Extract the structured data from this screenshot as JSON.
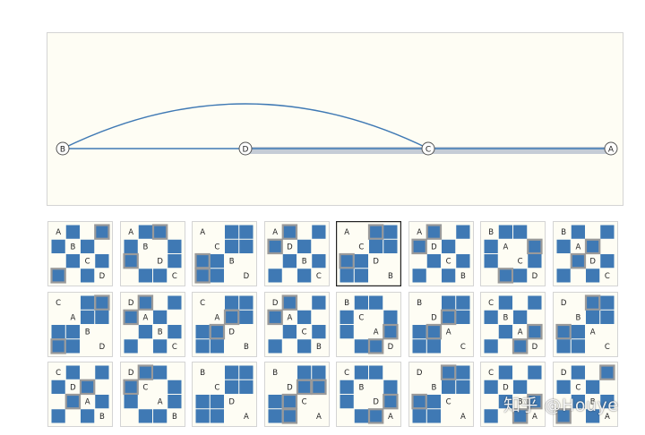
{
  "graph": {
    "nodes": [
      "B",
      "D",
      "C",
      "A"
    ],
    "straight_edges": [
      [
        "B",
        "D"
      ],
      [
        "D",
        "C"
      ],
      [
        "C",
        "A"
      ]
    ],
    "arc_edges": [
      [
        "B",
        "C"
      ]
    ],
    "highlighted_path": [
      "D",
      "C",
      "A"
    ],
    "colors": {
      "edge": "#3f79b4",
      "highlight": "#c5ccd6",
      "node_fill": "#ffffff",
      "node_stroke": "#555555"
    }
  },
  "matrix_grid": {
    "colors": {
      "cell_bg": "#fefdf4",
      "filled": "#3f79b4",
      "outline": "#9a9a9a",
      "border": "#d4d4d4",
      "selected_border": "#222222"
    },
    "selected_index": 4,
    "matrices": [
      {
        "labels": [
          "A",
          "B",
          "C",
          "D"
        ],
        "filled": [
          [
            0,
            1
          ],
          [
            0,
            3
          ],
          [
            1,
            0
          ],
          [
            1,
            2
          ],
          [
            2,
            1
          ],
          [
            2,
            3
          ],
          [
            3,
            0
          ],
          [
            3,
            2
          ]
        ],
        "outlined": [
          [
            0,
            3
          ],
          [
            3,
            0
          ]
        ]
      },
      {
        "labels": [
          "A",
          "B",
          "D",
          "C"
        ],
        "filled": [
          [
            0,
            1
          ],
          [
            0,
            2
          ],
          [
            1,
            0
          ],
          [
            1,
            3
          ],
          [
            2,
            0
          ],
          [
            2,
            3
          ],
          [
            3,
            1
          ],
          [
            3,
            2
          ]
        ],
        "outlined": [
          [
            0,
            2
          ],
          [
            2,
            0
          ]
        ]
      },
      {
        "labels": [
          "A",
          "C",
          "B",
          "D"
        ],
        "filled": [
          [
            0,
            2
          ],
          [
            0,
            3
          ],
          [
            1,
            2
          ],
          [
            1,
            3
          ],
          [
            2,
            0
          ],
          [
            2,
            1
          ],
          [
            3,
            0
          ],
          [
            3,
            1
          ]
        ],
        "outlined": [
          [
            2,
            0
          ],
          [
            3,
            0
          ]
        ]
      },
      {
        "labels": [
          "A",
          "D",
          "B",
          "C"
        ],
        "filled": [
          [
            0,
            1
          ],
          [
            0,
            3
          ],
          [
            1,
            0
          ],
          [
            1,
            2
          ],
          [
            2,
            1
          ],
          [
            2,
            3
          ],
          [
            3,
            0
          ],
          [
            3,
            2
          ]
        ],
        "outlined": [
          [
            0,
            1
          ],
          [
            1,
            0
          ]
        ]
      },
      {
        "labels": [
          "A",
          "C",
          "D",
          "B"
        ],
        "filled": [
          [
            0,
            2
          ],
          [
            0,
            3
          ],
          [
            1,
            2
          ],
          [
            1,
            3
          ],
          [
            2,
            0
          ],
          [
            2,
            1
          ],
          [
            3,
            0
          ],
          [
            3,
            1
          ]
        ],
        "outlined": [
          [
            0,
            2
          ],
          [
            2,
            0
          ]
        ]
      },
      {
        "labels": [
          "A",
          "D",
          "C",
          "B"
        ],
        "filled": [
          [
            0,
            1
          ],
          [
            0,
            3
          ],
          [
            1,
            0
          ],
          [
            1,
            2
          ],
          [
            2,
            1
          ],
          [
            2,
            3
          ],
          [
            3,
            0
          ],
          [
            3,
            2
          ]
        ],
        "outlined": [
          [
            0,
            1
          ],
          [
            1,
            0
          ]
        ]
      },
      {
        "labels": [
          "B",
          "A",
          "C",
          "D"
        ],
        "filled": [
          [
            0,
            1
          ],
          [
            0,
            2
          ],
          [
            1,
            0
          ],
          [
            1,
            3
          ],
          [
            2,
            0
          ],
          [
            2,
            3
          ],
          [
            3,
            1
          ],
          [
            3,
            2
          ]
        ],
        "outlined": [
          [
            1,
            3
          ],
          [
            3,
            1
          ]
        ]
      },
      {
        "labels": [
          "B",
          "A",
          "D",
          "C"
        ],
        "filled": [
          [
            0,
            1
          ],
          [
            0,
            3
          ],
          [
            1,
            0
          ],
          [
            1,
            2
          ],
          [
            2,
            1
          ],
          [
            2,
            3
          ],
          [
            3,
            0
          ],
          [
            3,
            2
          ]
        ],
        "outlined": [
          [
            1,
            2
          ],
          [
            2,
            1
          ]
        ]
      },
      {
        "labels": [
          "C",
          "A",
          "B",
          "D"
        ],
        "filled": [
          [
            0,
            2
          ],
          [
            0,
            3
          ],
          [
            1,
            2
          ],
          [
            1,
            3
          ],
          [
            2,
            0
          ],
          [
            2,
            1
          ],
          [
            3,
            0
          ],
          [
            3,
            1
          ]
        ],
        "outlined": [
          [
            0,
            3
          ],
          [
            3,
            0
          ]
        ]
      },
      {
        "labels": [
          "D",
          "A",
          "B",
          "C"
        ],
        "filled": [
          [
            0,
            1
          ],
          [
            0,
            3
          ],
          [
            1,
            0
          ],
          [
            1,
            2
          ],
          [
            2,
            1
          ],
          [
            2,
            3
          ],
          [
            3,
            0
          ],
          [
            3,
            2
          ]
        ],
        "outlined": [
          [
            0,
            1
          ],
          [
            1,
            0
          ]
        ]
      },
      {
        "labels": [
          "C",
          "A",
          "D",
          "B"
        ],
        "filled": [
          [
            0,
            2
          ],
          [
            0,
            3
          ],
          [
            1,
            2
          ],
          [
            1,
            3
          ],
          [
            2,
            0
          ],
          [
            2,
            1
          ],
          [
            3,
            0
          ],
          [
            3,
            1
          ]
        ],
        "outlined": [
          [
            2,
            1
          ],
          [
            1,
            2
          ]
        ]
      },
      {
        "labels": [
          "D",
          "A",
          "C",
          "B"
        ],
        "filled": [
          [
            0,
            1
          ],
          [
            0,
            3
          ],
          [
            1,
            0
          ],
          [
            1,
            2
          ],
          [
            2,
            1
          ],
          [
            2,
            3
          ],
          [
            3,
            0
          ],
          [
            3,
            2
          ]
        ],
        "outlined": [
          [
            0,
            1
          ],
          [
            1,
            0
          ]
        ]
      },
      {
        "labels": [
          "B",
          "C",
          "A",
          "D"
        ],
        "filled": [
          [
            0,
            1
          ],
          [
            0,
            2
          ],
          [
            1,
            0
          ],
          [
            1,
            3
          ],
          [
            2,
            0
          ],
          [
            2,
            3
          ],
          [
            3,
            1
          ],
          [
            3,
            2
          ]
        ],
        "outlined": [
          [
            2,
            3
          ],
          [
            3,
            2
          ]
        ]
      },
      {
        "labels": [
          "B",
          "D",
          "A",
          "C"
        ],
        "filled": [
          [
            0,
            2
          ],
          [
            0,
            3
          ],
          [
            1,
            2
          ],
          [
            1,
            3
          ],
          [
            2,
            0
          ],
          [
            2,
            1
          ],
          [
            3,
            0
          ],
          [
            3,
            1
          ]
        ],
        "outlined": [
          [
            1,
            2
          ],
          [
            2,
            1
          ]
        ]
      },
      {
        "labels": [
          "C",
          "B",
          "A",
          "D"
        ],
        "filled": [
          [
            0,
            1
          ],
          [
            0,
            3
          ],
          [
            1,
            0
          ],
          [
            1,
            2
          ],
          [
            2,
            1
          ],
          [
            2,
            3
          ],
          [
            3,
            0
          ],
          [
            3,
            2
          ]
        ],
        "outlined": [
          [
            2,
            3
          ],
          [
            3,
            2
          ]
        ]
      },
      {
        "labels": [
          "D",
          "B",
          "A",
          "C"
        ],
        "filled": [
          [
            0,
            2
          ],
          [
            0,
            3
          ],
          [
            1,
            2
          ],
          [
            1,
            3
          ],
          [
            2,
            0
          ],
          [
            2,
            1
          ],
          [
            3,
            0
          ],
          [
            3,
            1
          ]
        ],
        "outlined": [
          [
            0,
            2
          ],
          [
            2,
            0
          ]
        ]
      },
      {
        "labels": [
          "C",
          "D",
          "A",
          "B"
        ],
        "filled": [
          [
            0,
            1
          ],
          [
            0,
            3
          ],
          [
            1,
            0
          ],
          [
            1,
            2
          ],
          [
            2,
            1
          ],
          [
            2,
            3
          ],
          [
            3,
            0
          ],
          [
            3,
            2
          ]
        ],
        "outlined": [
          [
            1,
            2
          ],
          [
            2,
            1
          ]
        ]
      },
      {
        "labels": [
          "D",
          "C",
          "A",
          "B"
        ],
        "filled": [
          [
            0,
            1
          ],
          [
            0,
            2
          ],
          [
            1,
            0
          ],
          [
            1,
            3
          ],
          [
            2,
            0
          ],
          [
            2,
            3
          ],
          [
            3,
            1
          ],
          [
            3,
            2
          ]
        ],
        "outlined": [
          [
            0,
            1
          ],
          [
            1,
            0
          ]
        ]
      },
      {
        "labels": [
          "B",
          "C",
          "D",
          "A"
        ],
        "filled": [
          [
            0,
            2
          ],
          [
            0,
            3
          ],
          [
            1,
            2
          ],
          [
            1,
            3
          ],
          [
            2,
            0
          ],
          [
            2,
            1
          ],
          [
            3,
            0
          ],
          [
            3,
            1
          ]
        ],
        "outlined": [
          [
            2,
            3
          ],
          [
            3,
            2
          ]
        ]
      },
      {
        "labels": [
          "B",
          "D",
          "C",
          "A"
        ],
        "filled": [
          [
            0,
            2
          ],
          [
            0,
            3
          ],
          [
            1,
            2
          ],
          [
            1,
            3
          ],
          [
            2,
            0
          ],
          [
            2,
            1
          ],
          [
            3,
            0
          ],
          [
            3,
            1
          ]
        ],
        "outlined": [
          [
            1,
            2
          ],
          [
            2,
            1
          ],
          [
            1,
            3
          ],
          [
            3,
            1
          ]
        ]
      },
      {
        "labels": [
          "C",
          "B",
          "D",
          "A"
        ],
        "filled": [
          [
            0,
            1
          ],
          [
            0,
            2
          ],
          [
            1,
            0
          ],
          [
            1,
            3
          ],
          [
            2,
            0
          ],
          [
            2,
            3
          ],
          [
            3,
            1
          ],
          [
            3,
            2
          ]
        ],
        "outlined": [
          [
            2,
            3
          ],
          [
            3,
            2
          ]
        ]
      },
      {
        "labels": [
          "D",
          "B",
          "C",
          "A"
        ],
        "filled": [
          [
            0,
            2
          ],
          [
            0,
            3
          ],
          [
            1,
            2
          ],
          [
            1,
            3
          ],
          [
            2,
            0
          ],
          [
            2,
            1
          ],
          [
            3,
            0
          ],
          [
            3,
            1
          ]
        ],
        "outlined": [
          [
            0,
            2
          ],
          [
            2,
            0
          ]
        ]
      },
      {
        "labels": [
          "C",
          "D",
          "B",
          "A"
        ],
        "filled": [
          [
            0,
            1
          ],
          [
            0,
            3
          ],
          [
            1,
            0
          ],
          [
            1,
            2
          ],
          [
            2,
            1
          ],
          [
            2,
            3
          ],
          [
            3,
            0
          ],
          [
            3,
            2
          ]
        ],
        "outlined": [
          [
            2,
            3
          ],
          [
            3,
            2
          ]
        ]
      },
      {
        "labels": [
          "D",
          "C",
          "B",
          "A"
        ],
        "filled": [
          [
            0,
            1
          ],
          [
            0,
            3
          ],
          [
            1,
            0
          ],
          [
            1,
            2
          ],
          [
            2,
            1
          ],
          [
            2,
            3
          ],
          [
            3,
            0
          ],
          [
            3,
            2
          ]
        ],
        "outlined": [
          [
            0,
            3
          ],
          [
            3,
            0
          ]
        ]
      }
    ]
  },
  "watermark": "知乎 @Houye"
}
